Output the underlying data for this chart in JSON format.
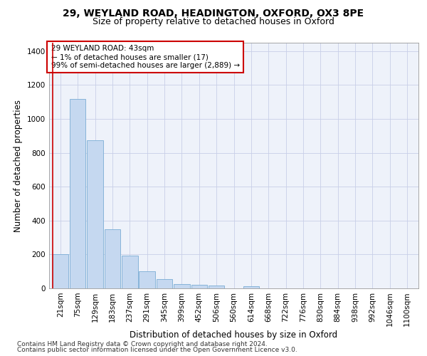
{
  "title1": "29, WEYLAND ROAD, HEADINGTON, OXFORD, OX3 8PE",
  "title2": "Size of property relative to detached houses in Oxford",
  "xlabel": "Distribution of detached houses by size in Oxford",
  "ylabel": "Number of detached properties",
  "categories": [
    "21sqm",
    "75sqm",
    "129sqm",
    "183sqm",
    "237sqm",
    "291sqm",
    "345sqm",
    "399sqm",
    "452sqm",
    "506sqm",
    "560sqm",
    "614sqm",
    "668sqm",
    "722sqm",
    "776sqm",
    "830sqm",
    "884sqm",
    "938sqm",
    "992sqm",
    "1046sqm",
    "1100sqm"
  ],
  "values": [
    200,
    1120,
    875,
    350,
    193,
    100,
    53,
    25,
    20,
    18,
    0,
    13,
    0,
    0,
    0,
    0,
    0,
    0,
    0,
    0,
    0
  ],
  "bar_color": "#c5d8f0",
  "bar_edge_color": "#7aadd4",
  "annotation_line1": "29 WEYLAND ROAD: 43sqm",
  "annotation_line2": "← 1% of detached houses are smaller (17)",
  "annotation_line3": "99% of semi-detached houses are larger (2,889) →",
  "annotation_box_color": "#ffffff",
  "annotation_box_edge_color": "#cc0000",
  "property_line_color": "#cc0000",
  "footer1": "Contains HM Land Registry data © Crown copyright and database right 2024.",
  "footer2": "Contains public sector information licensed under the Open Government Licence v3.0.",
  "bg_color": "#eef2fa",
  "ylim": [
    0,
    1450
  ],
  "title1_fontsize": 10,
  "title2_fontsize": 9,
  "xlabel_fontsize": 8.5,
  "ylabel_fontsize": 8.5,
  "tick_fontsize": 7.5,
  "annotation_fontsize": 7.5,
  "footer_fontsize": 6.5
}
